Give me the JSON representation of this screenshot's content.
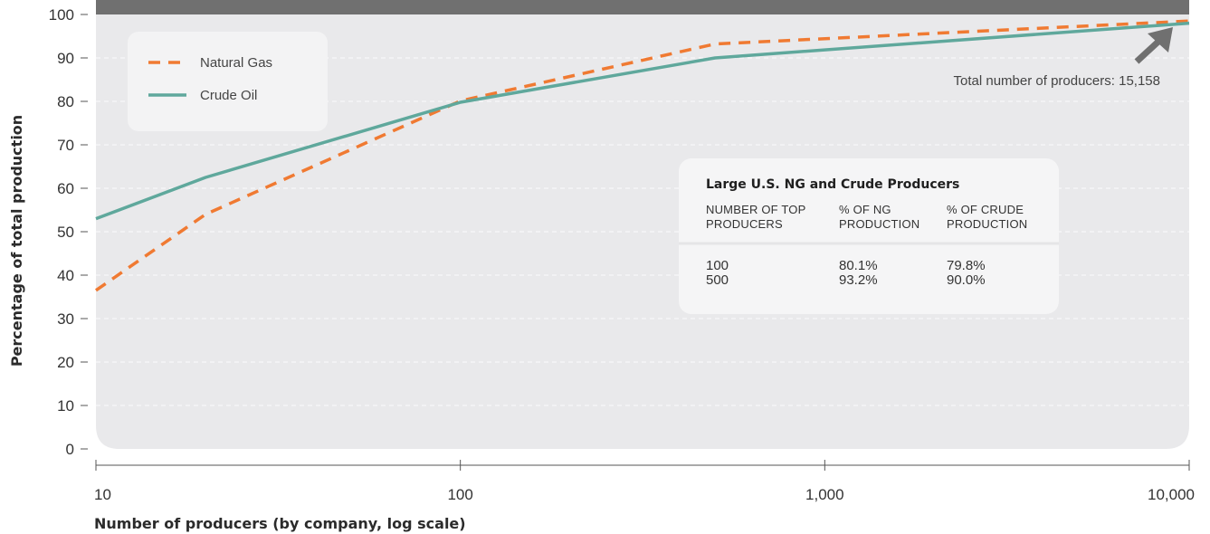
{
  "chart_data": {
    "type": "line",
    "title": "",
    "xlabel": "Number of producers (by company, log scale)",
    "ylabel": "Percentage of total production",
    "x_scale": "log",
    "xlim": [
      10,
      10000
    ],
    "ylim": [
      0,
      100
    ],
    "x_ticks": [
      10,
      100,
      1000,
      10000
    ],
    "x_tick_labels": [
      "10",
      "100",
      "1,000",
      "10,000"
    ],
    "y_ticks": [
      0,
      10,
      20,
      30,
      40,
      50,
      60,
      70,
      80,
      90,
      100
    ],
    "y_tick_labels": [
      "0",
      "10",
      "20",
      "30",
      "40",
      "50",
      "60",
      "70",
      "80",
      "90",
      "100"
    ],
    "grid": "horizontal dashed",
    "legend_position": "top-left",
    "series": [
      {
        "name": "Natural Gas",
        "color": "#f07a32",
        "style": "dashed",
        "x": [
          10,
          20,
          100,
          500,
          10000
        ],
        "y": [
          36.5,
          54,
          80.1,
          93.2,
          98.5
        ]
      },
      {
        "name": "Crude Oil",
        "color": "#5fa89c",
        "style": "solid",
        "x": [
          10,
          20,
          100,
          500,
          10000
        ],
        "y": [
          53,
          62.5,
          79.8,
          90.0,
          98
        ]
      }
    ],
    "annotation": {
      "text": "Total number of producers: 15,158",
      "arrow_color": "#707070"
    },
    "inset_table": {
      "title": "Large U.S. NG and Crude Producers",
      "headers": [
        [
          "NUMBER OF TOP",
          "PRODUCERS"
        ],
        [
          "% OF NG",
          "PRODUCTION"
        ],
        [
          "% OF CRUDE",
          "PRODUCTION"
        ]
      ],
      "rows": [
        [
          "100",
          "80.1%",
          "79.8%"
        ],
        [
          "500",
          "93.2%",
          "90.0%"
        ]
      ]
    }
  },
  "colors": {
    "plot_background": "#e9e9eb",
    "top_band": "#707070",
    "grid": "#ffffff",
    "axis": "#555555",
    "legend_box": "#f3f3f4",
    "table_box": "#f5f5f6"
  }
}
